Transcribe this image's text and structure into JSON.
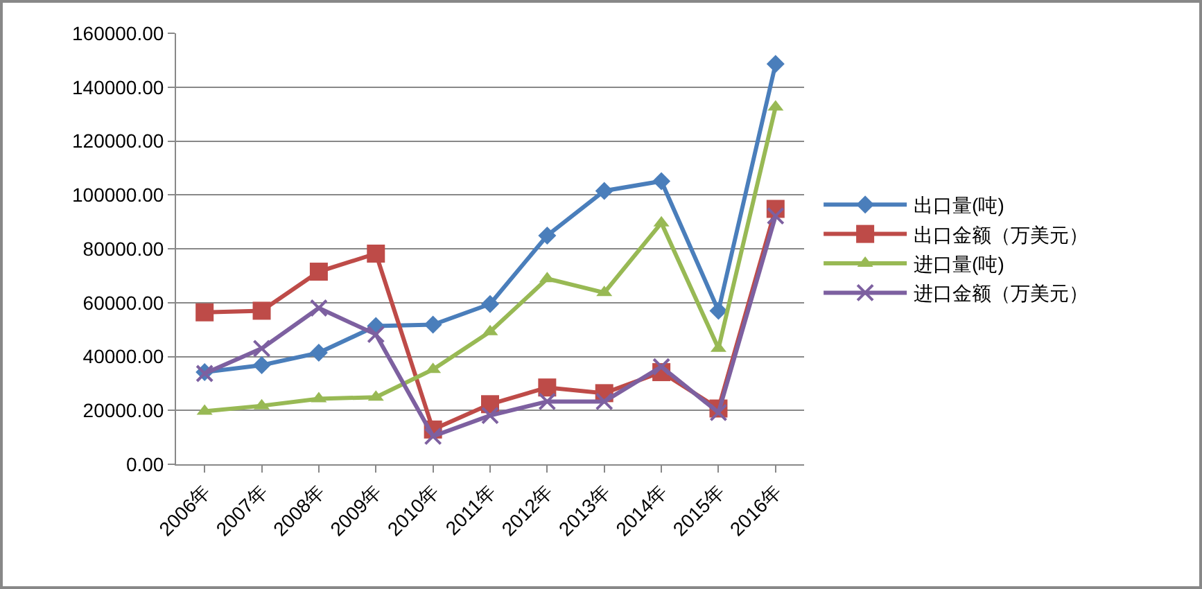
{
  "chart_data": {
    "type": "line",
    "categories": [
      "2006年",
      "2007年",
      "2008年",
      "2009年",
      "2010年",
      "2011年",
      "2012年",
      "2013年",
      "2014年",
      "2015年",
      "2016年"
    ],
    "series": [
      {
        "name": "出口量(吨)",
        "color": "#4a7ebb",
        "marker": "diamond",
        "values": [
          34200,
          36800,
          41400,
          51300,
          51800,
          59500,
          84900,
          101500,
          105100,
          57000,
          148600
        ]
      },
      {
        "name": "出口金额（万美元）",
        "color": "#be4b48",
        "marker": "square",
        "values": [
          56400,
          57000,
          71500,
          78200,
          12900,
          22300,
          28500,
          26400,
          34200,
          20700,
          94800
        ]
      },
      {
        "name": "进口量(吨)",
        "color": "#98b954",
        "marker": "triangle",
        "values": [
          19700,
          21700,
          24300,
          24900,
          35200,
          49200,
          68900,
          63700,
          89600,
          43000,
          132600
        ]
      },
      {
        "name": "进口金额（万美元）",
        "color": "#7d60a0",
        "marker": "cross",
        "values": [
          33700,
          43000,
          58000,
          48200,
          10400,
          18100,
          23300,
          23300,
          36200,
          19200,
          92200
        ]
      }
    ],
    "ylim": [
      0,
      160000
    ],
    "yticks": [
      {
        "value": 0,
        "label": "0.00"
      },
      {
        "value": 20000,
        "label": "20000.00"
      },
      {
        "value": 40000,
        "label": "40000.00"
      },
      {
        "value": 60000,
        "label": "60000.00"
      },
      {
        "value": 80000,
        "label": "80000.00"
      },
      {
        "value": 100000,
        "label": "100000.00"
      },
      {
        "value": 120000,
        "label": "120000.00"
      },
      {
        "value": 140000,
        "label": "140000.00"
      },
      {
        "value": 160000,
        "label": "160000.00"
      }
    ],
    "grid": "y",
    "legend": "right",
    "line_style": "solid"
  }
}
